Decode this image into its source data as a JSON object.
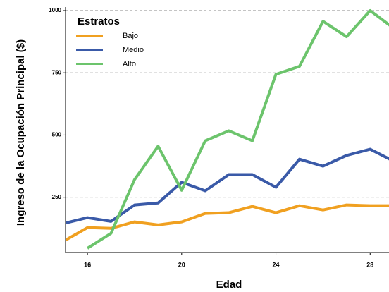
{
  "chart_data": {
    "type": "line",
    "x_label": "Edad",
    "y_label": "Ingreso de la Ocupación Principal ($)",
    "legend_title": "Estratos",
    "legend_position": "upper left",
    "x": [
      15,
      16,
      17,
      18,
      19,
      20,
      21,
      22,
      23,
      24,
      25,
      26,
      27,
      28,
      29
    ],
    "series": [
      {
        "name": "Bajo",
        "color": "#f0a020",
        "values": [
          74,
          128,
          125,
          151,
          139,
          151,
          185,
          188,
          213,
          188,
          216,
          199,
          219,
          216,
          216
        ]
      },
      {
        "name": "Medio",
        "color": "#3a5aa8",
        "values": [
          145,
          168,
          153,
          219,
          227,
          310,
          276,
          341,
          341,
          290,
          403,
          375,
          418,
          443,
          395
        ]
      },
      {
        "name": "Alto",
        "color": "#6cc46c",
        "values": [
          null,
          45,
          105,
          321,
          455,
          278,
          477,
          517,
          477,
          744,
          776,
          957,
          895,
          1000,
          929
        ]
      }
    ],
    "xlim": [
      15.07,
      28.8
    ],
    "xticks": [
      16,
      20,
      24,
      28
    ],
    "ylim": [
      28,
      1000
    ],
    "yticks": [
      250,
      500,
      750,
      1000
    ],
    "grid": true
  }
}
